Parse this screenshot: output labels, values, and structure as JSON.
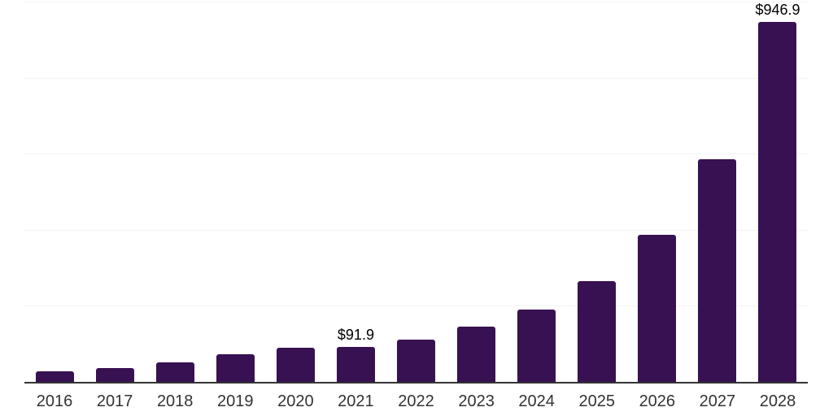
{
  "chart_data": {
    "type": "bar",
    "title": "",
    "xlabel": "",
    "ylabel": "",
    "categories": [
      "2016",
      "2017",
      "2018",
      "2019",
      "2020",
      "2021",
      "2022",
      "2023",
      "2024",
      "2025",
      "2026",
      "2027",
      "2028"
    ],
    "values": [
      27.5,
      36,
      51,
      72.5,
      89,
      91.9,
      111,
      145,
      190,
      266,
      386,
      586,
      946.9
    ],
    "bar_labels": {
      "2021": "$91.9",
      "2028": "$946.9"
    },
    "ylim": [
      0,
      1000
    ],
    "gridline_values": [
      200,
      400,
      600,
      800,
      1000
    ],
    "grid_on": true,
    "legend": "none",
    "bar_color": "#371151",
    "axis_line_color": "#333333",
    "gridline_color": "#f2f2f2",
    "tick_label_color": "#333333",
    "value_label_color": "#000000"
  }
}
